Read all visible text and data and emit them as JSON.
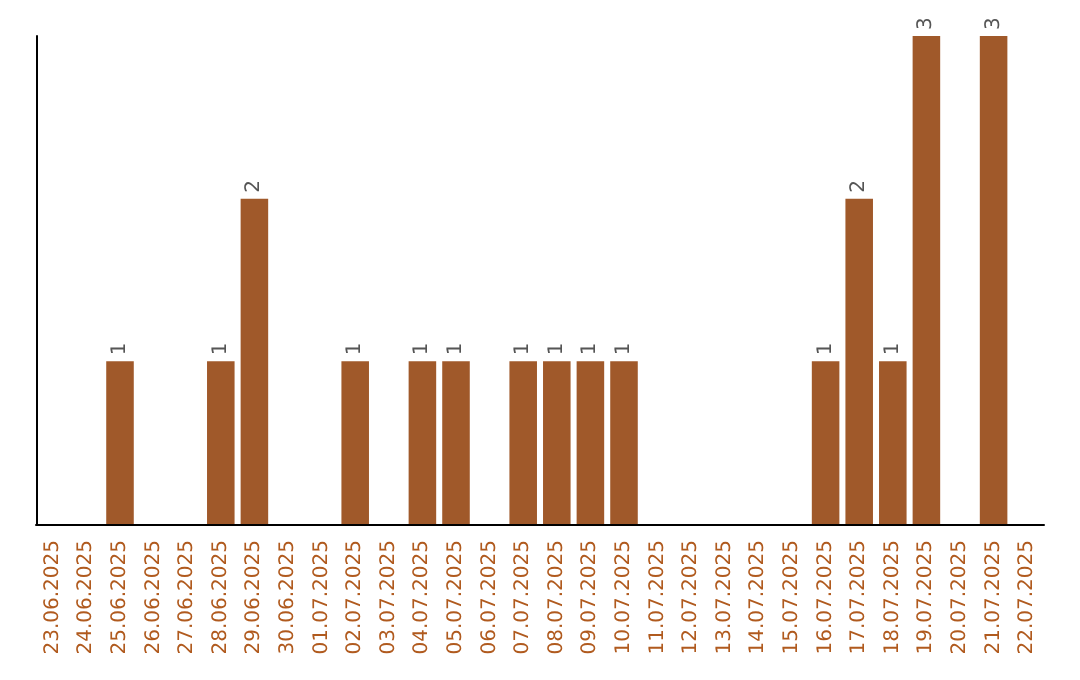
{
  "chart_data": {
    "type": "bar",
    "categories": [
      "23.06.2025",
      "24.06.2025",
      "25.06.2025",
      "26.06.2025",
      "27.06.2025",
      "28.06.2025",
      "29.06.2025",
      "30.06.2025",
      "01.07.2025",
      "02.07.2025",
      "03.07.2025",
      "04.07.2025",
      "05.07.2025",
      "06.07.2025",
      "07.07.2025",
      "08.07.2025",
      "09.07.2025",
      "10.07.2025",
      "11.07.2025",
      "12.07.2025",
      "13.07.2025",
      "14.07.2025",
      "15.07.2025",
      "16.07.2025",
      "17.07.2025",
      "18.07.2025",
      "19.07.2025",
      "20.07.2025",
      "21.07.2025",
      "22.07.2025"
    ],
    "values": [
      0,
      0,
      1,
      0,
      0,
      1,
      2,
      0,
      0,
      1,
      0,
      1,
      1,
      0,
      1,
      1,
      1,
      1,
      0,
      0,
      0,
      0,
      0,
      1,
      2,
      1,
      3,
      0,
      3,
      0
    ],
    "value_labels": [
      null,
      null,
      "1",
      null,
      null,
      "1",
      "2",
      null,
      null,
      "1",
      null,
      "1",
      "1",
      null,
      "1",
      "1",
      "1",
      "1",
      null,
      null,
      null,
      null,
      null,
      "1",
      "2",
      "1",
      "3",
      null,
      "3",
      null
    ],
    "color": "#a0592a",
    "grid": false,
    "tick_labels": "x"
  }
}
